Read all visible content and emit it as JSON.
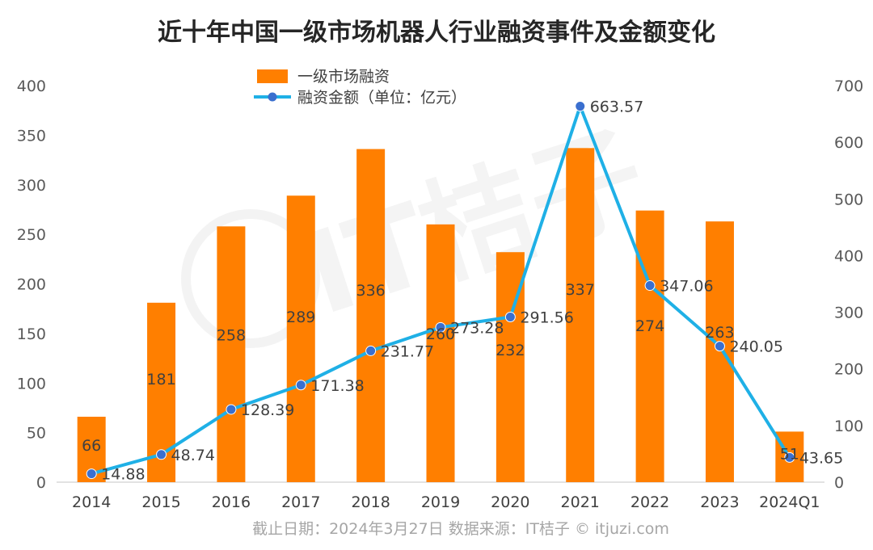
{
  "chart_data": {
    "type": "bar+line",
    "title": "近十年中国一级市场机器人行业融资事件及金额变化",
    "categories": [
      "2014",
      "2015",
      "2016",
      "2017",
      "2018",
      "2019",
      "2020",
      "2021",
      "2022",
      "2023",
      "2024Q1"
    ],
    "series": [
      {
        "name": "一级市场融资",
        "type": "bar",
        "axis": "left",
        "color": "#ff7f00",
        "values": [
          66,
          181,
          258,
          289,
          336,
          260,
          232,
          337,
          274,
          263,
          51
        ],
        "labels": [
          "66",
          "181",
          "258",
          "289",
          "336",
          "260",
          "232",
          "337",
          "274",
          "263",
          "51"
        ]
      },
      {
        "name": "融资金额（单位：亿元）",
        "type": "line",
        "axis": "right",
        "color": "#1fb0e6",
        "values": [
          14.88,
          48.74,
          128.39,
          171.38,
          231.77,
          273.28,
          291.56,
          663.57,
          347.06,
          240.05,
          43.65
        ],
        "labels": [
          "14.88",
          "48.74",
          "128.39",
          "171.38",
          "231.77",
          "273.28",
          "291.56",
          "663.57",
          "347.06",
          "240.05",
          "43.65"
        ]
      }
    ],
    "left_axis": {
      "min": 0,
      "max": 400,
      "step": 50,
      "tick_labels": [
        "0",
        "50",
        "100",
        "150",
        "200",
        "250",
        "300",
        "350",
        "400"
      ]
    },
    "right_axis": {
      "min": 0,
      "max": 700,
      "step": 100,
      "tick_labels": [
        "0",
        "100",
        "200",
        "300",
        "400",
        "500",
        "600",
        "700"
      ]
    },
    "legend_position": "top-center",
    "grid": false
  },
  "footer": "截止日期：2024年3月27日    数据来源：IT桔子 © itjuzi.com",
  "watermark": "IT桔子"
}
